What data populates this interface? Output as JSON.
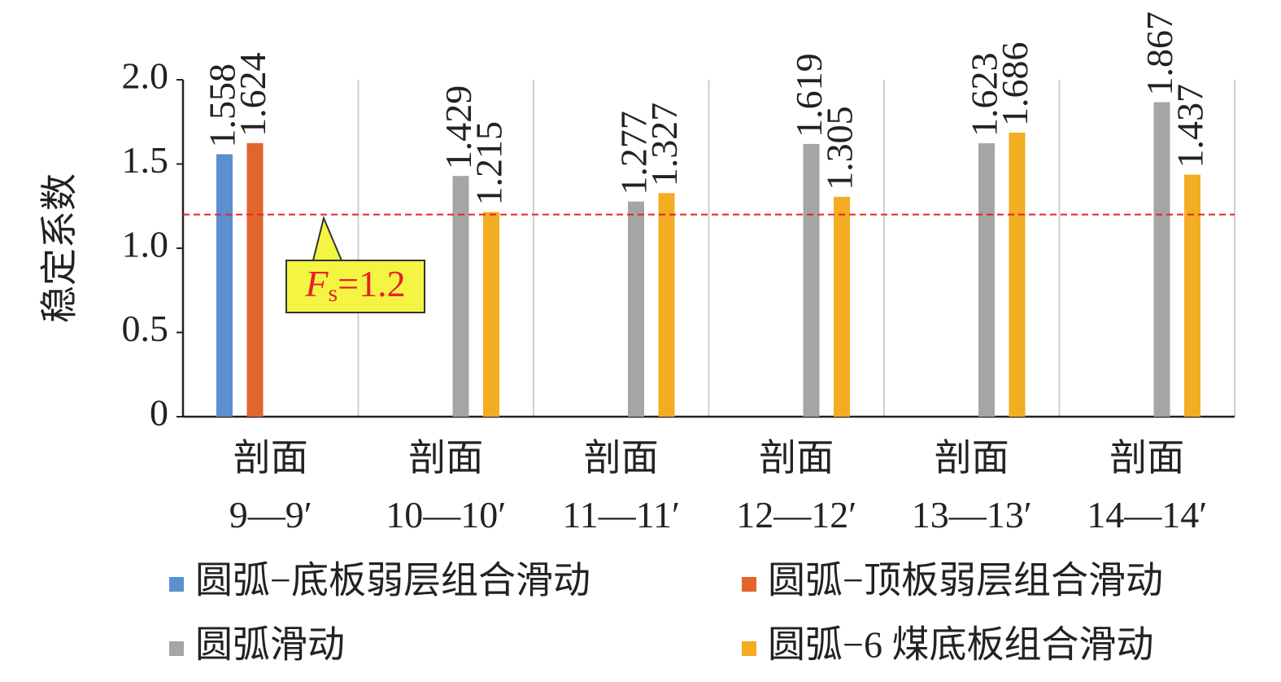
{
  "chart_data": {
    "type": "bar",
    "y_label": "稳定系数",
    "categories": [
      "剖面\n9—9′",
      "剖面\n10—10′",
      "剖面\n11—11′",
      "剖面\n12—12′",
      "剖面\n13—13′",
      "剖面\n14—14′"
    ],
    "series": [
      {
        "name": "圆弧−底板弱层组合滑动",
        "color": "#5b8fd0",
        "values": [
          1.558,
          null,
          null,
          null,
          null,
          null
        ]
      },
      {
        "name": "圆弧−顶板弱层组合滑动",
        "color": "#e2652e",
        "values": [
          1.624,
          null,
          null,
          null,
          null,
          null
        ]
      },
      {
        "name": "圆弧滑动",
        "color": "#a5a5a5",
        "values": [
          null,
          1.429,
          1.277,
          1.619,
          1.623,
          1.867
        ]
      },
      {
        "name": "圆弧−6 煤底板组合滑动",
        "color": "#f2ad22",
        "values": [
          null,
          1.215,
          1.327,
          1.305,
          1.686,
          1.437
        ]
      }
    ],
    "ylim": [
      0,
      2.0
    ],
    "yticks": [
      0,
      0.5,
      {
        "value": 1.0,
        "label": "1.0"
      },
      1.5,
      {
        "value": 2.0,
        "label": "2.0"
      }
    ],
    "reference_line": {
      "value": 1.2,
      "color": "#e8202a",
      "label": [
        "F",
        "s",
        "=1.2"
      ]
    },
    "legend": "bottom"
  }
}
